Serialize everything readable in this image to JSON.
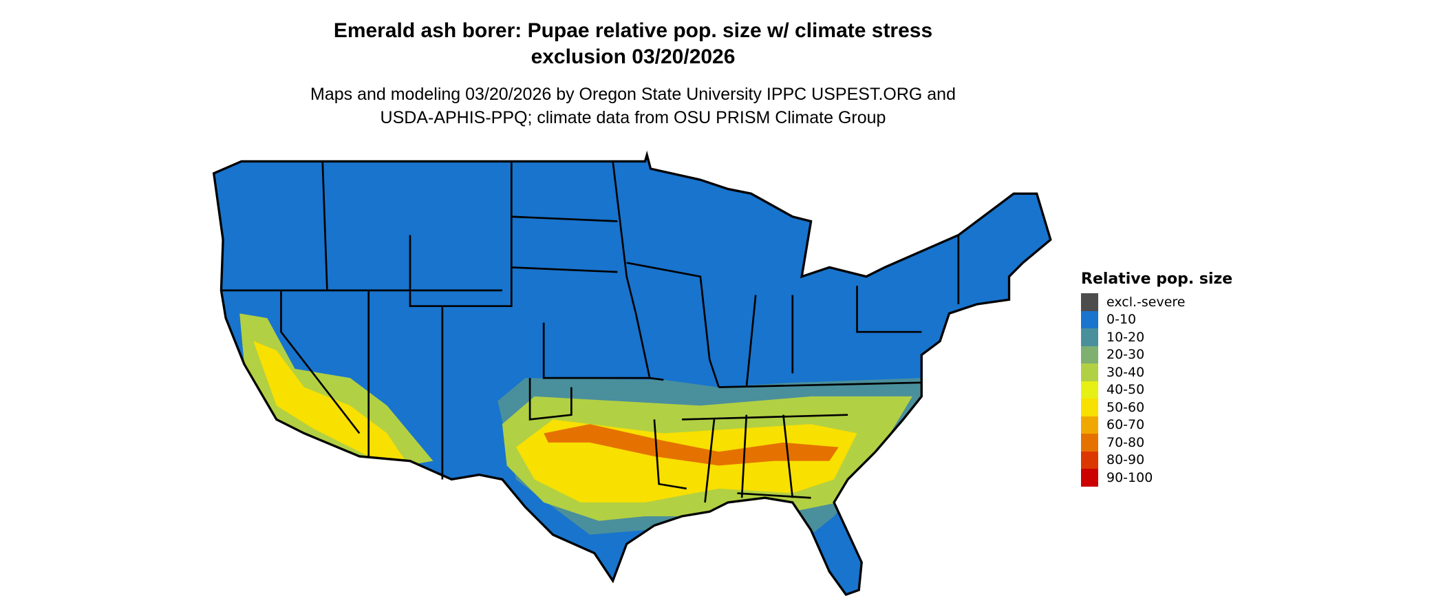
{
  "title": {
    "line1": "Emerald ash borer: Pupae relative pop. size w/ climate stress",
    "line2": "exclusion 03/20/2026"
  },
  "subtitle": {
    "line1": "Maps and modeling 03/20/2026 by Oregon State University IPPC USPEST.ORG and",
    "line2": "USDA-APHIS-PPQ; climate data from OSU PRISM Climate Group"
  },
  "legend": {
    "title": "Relative pop. size",
    "items": [
      {
        "label": "excl.-severe",
        "color": "#4d4d4d"
      },
      {
        "label": "0-10",
        "color": "#1874cd"
      },
      {
        "label": "10-20",
        "color": "#4a8f9c"
      },
      {
        "label": "20-30",
        "color": "#7fb070"
      },
      {
        "label": "30-40",
        "color": "#b2d043"
      },
      {
        "label": "40-50",
        "color": "#e6f014"
      },
      {
        "label": "50-60",
        "color": "#f8e000"
      },
      {
        "label": "60-70",
        "color": "#f0a800"
      },
      {
        "label": "70-80",
        "color": "#e57200"
      },
      {
        "label": "80-90",
        "color": "#dc3700"
      },
      {
        "label": "90-100",
        "color": "#cc0000"
      }
    ]
  }
}
